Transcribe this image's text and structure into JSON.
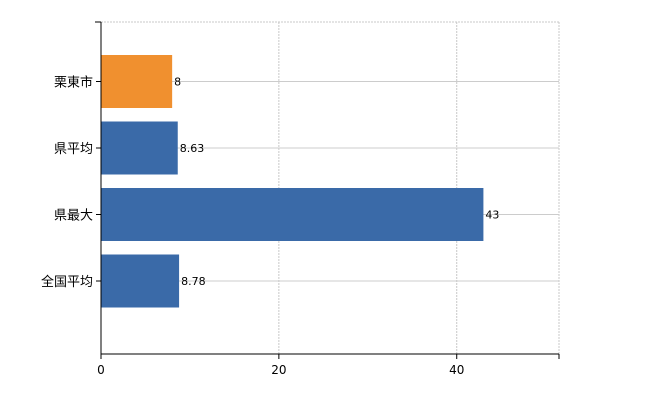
{
  "chart_data": {
    "type": "bar",
    "orientation": "horizontal",
    "categories": [
      "栗東市",
      "県平均",
      "県最大",
      "全国平均"
    ],
    "values": [
      8,
      8.63,
      43,
      8.78
    ],
    "value_labels": [
      "8",
      "8.63",
      "43",
      "8.78"
    ],
    "bar_colors": [
      "#f0902f",
      "#3a6aa8",
      "#3a6aa8",
      "#3a6aa8"
    ],
    "xlim": [
      0,
      51.5
    ],
    "xticks": [
      0,
      20,
      40
    ],
    "xtick_labels": [
      "0",
      "20",
      "40"
    ],
    "grid": true,
    "title": "",
    "xlabel": "",
    "ylabel": ""
  }
}
